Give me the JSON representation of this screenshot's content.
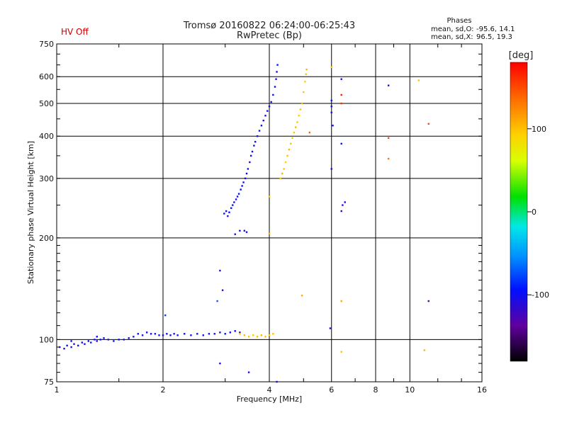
{
  "chart_data": {
    "type": "scatter",
    "title": "Tromsø 20160822 06:24:00-06:25:43",
    "subtitle": "RwPretec (Bp)",
    "status_label": "HV Off",
    "status_color": "#cc0000",
    "phases_title": "Phases",
    "phases_stats": [
      {
        "label": "mean, sd,O:",
        "value": "-95.6, 14.1"
      },
      {
        "label": "mean, sd,X:",
        "value": "96.5, 19.3"
      }
    ],
    "xlabel": "Frequency [MHz]",
    "ylabel": "Stationary phase Virtual Height [km]",
    "x_scale": "log",
    "y_scale": "log",
    "xlim": [
      1,
      16
    ],
    "ylim": [
      75,
      750
    ],
    "x_ticks": [
      1,
      2,
      4,
      6,
      8,
      10,
      16
    ],
    "y_ticks": [
      75,
      100,
      200,
      300,
      400,
      500,
      600,
      750
    ],
    "grid": true,
    "colorbar": {
      "label": "[deg]",
      "range": [
        -180,
        180
      ],
      "ticks": [
        100,
        0,
        -100
      ]
    },
    "series": [
      {
        "points": [
          [
            1.02,
            95,
            -100
          ],
          [
            1.05,
            94,
            -105
          ],
          [
            1.07,
            96,
            -95
          ],
          [
            1.1,
            95,
            -100
          ],
          [
            1.12,
            97,
            -110
          ],
          [
            1.15,
            96,
            -100
          ],
          [
            1.18,
            98,
            -95
          ],
          [
            1.2,
            97,
            -105
          ],
          [
            1.23,
            99,
            -100
          ],
          [
            1.25,
            98,
            -90
          ],
          [
            1.28,
            100,
            -100
          ],
          [
            1.3,
            99,
            -110
          ],
          [
            1.33,
            100,
            -95
          ],
          [
            1.36,
            101,
            -100
          ],
          [
            1.4,
            100,
            -105
          ],
          [
            1.45,
            99,
            -100
          ],
          [
            1.5,
            100,
            -95
          ],
          [
            1.55,
            100,
            -110
          ],
          [
            1.6,
            101,
            -100
          ],
          [
            1.65,
            102,
            -95
          ],
          [
            1.7,
            104,
            -100
          ],
          [
            1.75,
            103,
            -105
          ],
          [
            1.8,
            105,
            -100
          ],
          [
            1.85,
            104,
            -95
          ],
          [
            1.9,
            104,
            -100
          ],
          [
            1.95,
            103,
            -105
          ],
          [
            2.0,
            103,
            -100
          ],
          [
            2.05,
            104,
            -95
          ],
          [
            2.1,
            103,
            -100
          ],
          [
            2.15,
            104,
            -110
          ],
          [
            2.2,
            103,
            -100
          ],
          [
            2.3,
            104,
            -95
          ],
          [
            2.4,
            103,
            -100
          ],
          [
            2.5,
            104,
            -105
          ],
          [
            2.6,
            103,
            -100
          ],
          [
            2.7,
            104,
            -95
          ],
          [
            2.8,
            104,
            -100
          ],
          [
            2.9,
            105,
            -110
          ],
          [
            3.0,
            104,
            -100
          ],
          [
            3.1,
            105,
            -95
          ],
          [
            3.2,
            106,
            -100
          ],
          [
            3.3,
            105,
            -110
          ],
          [
            1.1,
            99,
            -100
          ],
          [
            1.3,
            102,
            -95
          ],
          [
            2.03,
            118,
            -80
          ],
          [
            2.85,
            130,
            -70
          ],
          [
            2.9,
            160,
            -100
          ],
          [
            2.95,
            140,
            -110
          ]
        ]
      },
      {
        "points": [
          [
            2.98,
            236,
            -100
          ],
          [
            3.02,
            240,
            -105
          ],
          [
            3.05,
            232,
            -110
          ],
          [
            3.08,
            238,
            -100
          ],
          [
            3.12,
            245,
            -95
          ],
          [
            3.15,
            250,
            -100
          ],
          [
            3.18,
            255,
            -105
          ],
          [
            3.22,
            260,
            -100
          ],
          [
            3.25,
            265,
            -110
          ],
          [
            3.28,
            270,
            -100
          ],
          [
            3.32,
            278,
            -95
          ],
          [
            3.35,
            285,
            -100
          ],
          [
            3.38,
            292,
            -105
          ],
          [
            3.42,
            300,
            -100
          ],
          [
            3.45,
            310,
            -95
          ],
          [
            3.48,
            320,
            -100
          ],
          [
            3.52,
            335,
            -105
          ],
          [
            3.55,
            350,
            -100
          ],
          [
            3.58,
            360,
            -95
          ],
          [
            3.62,
            375,
            -100
          ],
          [
            3.65,
            385,
            -105
          ],
          [
            3.7,
            400,
            -100
          ],
          [
            3.75,
            415,
            -95
          ],
          [
            3.8,
            430,
            -100
          ],
          [
            3.85,
            445,
            -105
          ],
          [
            3.9,
            460,
            -100
          ],
          [
            3.95,
            475,
            -95
          ],
          [
            4.0,
            490,
            -100
          ],
          [
            4.05,
            505,
            -105
          ],
          [
            4.1,
            530,
            -100
          ],
          [
            4.15,
            560,
            -95
          ],
          [
            4.18,
            590,
            -100
          ],
          [
            4.2,
            620,
            -105
          ],
          [
            4.22,
            650,
            -100
          ],
          [
            3.2,
            205,
            -110
          ],
          [
            3.3,
            210,
            -100
          ],
          [
            3.4,
            210,
            -105
          ],
          [
            3.45,
            208,
            -100
          ]
        ]
      },
      {
        "points": [
          [
            3.3,
            104,
            100
          ],
          [
            3.4,
            103,
            105
          ],
          [
            3.5,
            102,
            100
          ],
          [
            3.6,
            103,
            95
          ],
          [
            3.7,
            102,
            100
          ],
          [
            3.8,
            103,
            105
          ],
          [
            3.9,
            102,
            100
          ],
          [
            4.0,
            103,
            95
          ],
          [
            4.1,
            104,
            100
          ],
          [
            4.3,
            300,
            100
          ],
          [
            4.35,
            310,
            105
          ],
          [
            4.4,
            320,
            100
          ],
          [
            4.45,
            335,
            95
          ],
          [
            4.5,
            350,
            100
          ],
          [
            4.55,
            365,
            105
          ],
          [
            4.6,
            380,
            100
          ],
          [
            4.65,
            395,
            95
          ],
          [
            4.7,
            410,
            100
          ],
          [
            4.75,
            425,
            105
          ],
          [
            4.8,
            440,
            100
          ],
          [
            4.85,
            460,
            95
          ],
          [
            4.9,
            480,
            100
          ],
          [
            4.95,
            500,
            105
          ],
          [
            5.0,
            540,
            100
          ],
          [
            5.05,
            580,
            95
          ],
          [
            5.08,
            610,
            100
          ],
          [
            5.1,
            630,
            105
          ],
          [
            4.0,
            265,
            100
          ],
          [
            4.0,
            206,
            110
          ],
          [
            4.95,
            135,
            110
          ],
          [
            6.4,
            130,
            110
          ],
          [
            6.4,
            92,
            100
          ],
          [
            11.0,
            93,
            105
          ],
          [
            10.6,
            585,
            100
          ],
          [
            6.0,
            640,
            95
          ]
        ]
      },
      {
        "points": [
          [
            6.0,
            510,
            -100
          ],
          [
            6.0,
            490,
            -95
          ],
          [
            6.0,
            470,
            -105
          ],
          [
            6.05,
            430,
            -100
          ],
          [
            6.0,
            320,
            -110
          ],
          [
            6.4,
            590,
            -100
          ],
          [
            6.4,
            380,
            -95
          ],
          [
            6.45,
            250,
            -105
          ],
          [
            6.55,
            255,
            -100
          ],
          [
            6.4,
            240,
            -110
          ],
          [
            8.7,
            565,
            -100
          ],
          [
            11.3,
            130,
            -130
          ],
          [
            5.95,
            108,
            -110
          ],
          [
            2.9,
            85,
            -100
          ],
          [
            3.5,
            80,
            -105
          ],
          [
            4.2,
            75,
            -100
          ]
        ]
      },
      {
        "points": [
          [
            6.4,
            530,
            170
          ],
          [
            6.4,
            500,
            160
          ],
          [
            8.7,
            395,
            150
          ],
          [
            8.7,
            343,
            130
          ],
          [
            11.3,
            435,
            150
          ],
          [
            5.2,
            410,
            140
          ]
        ]
      }
    ]
  }
}
